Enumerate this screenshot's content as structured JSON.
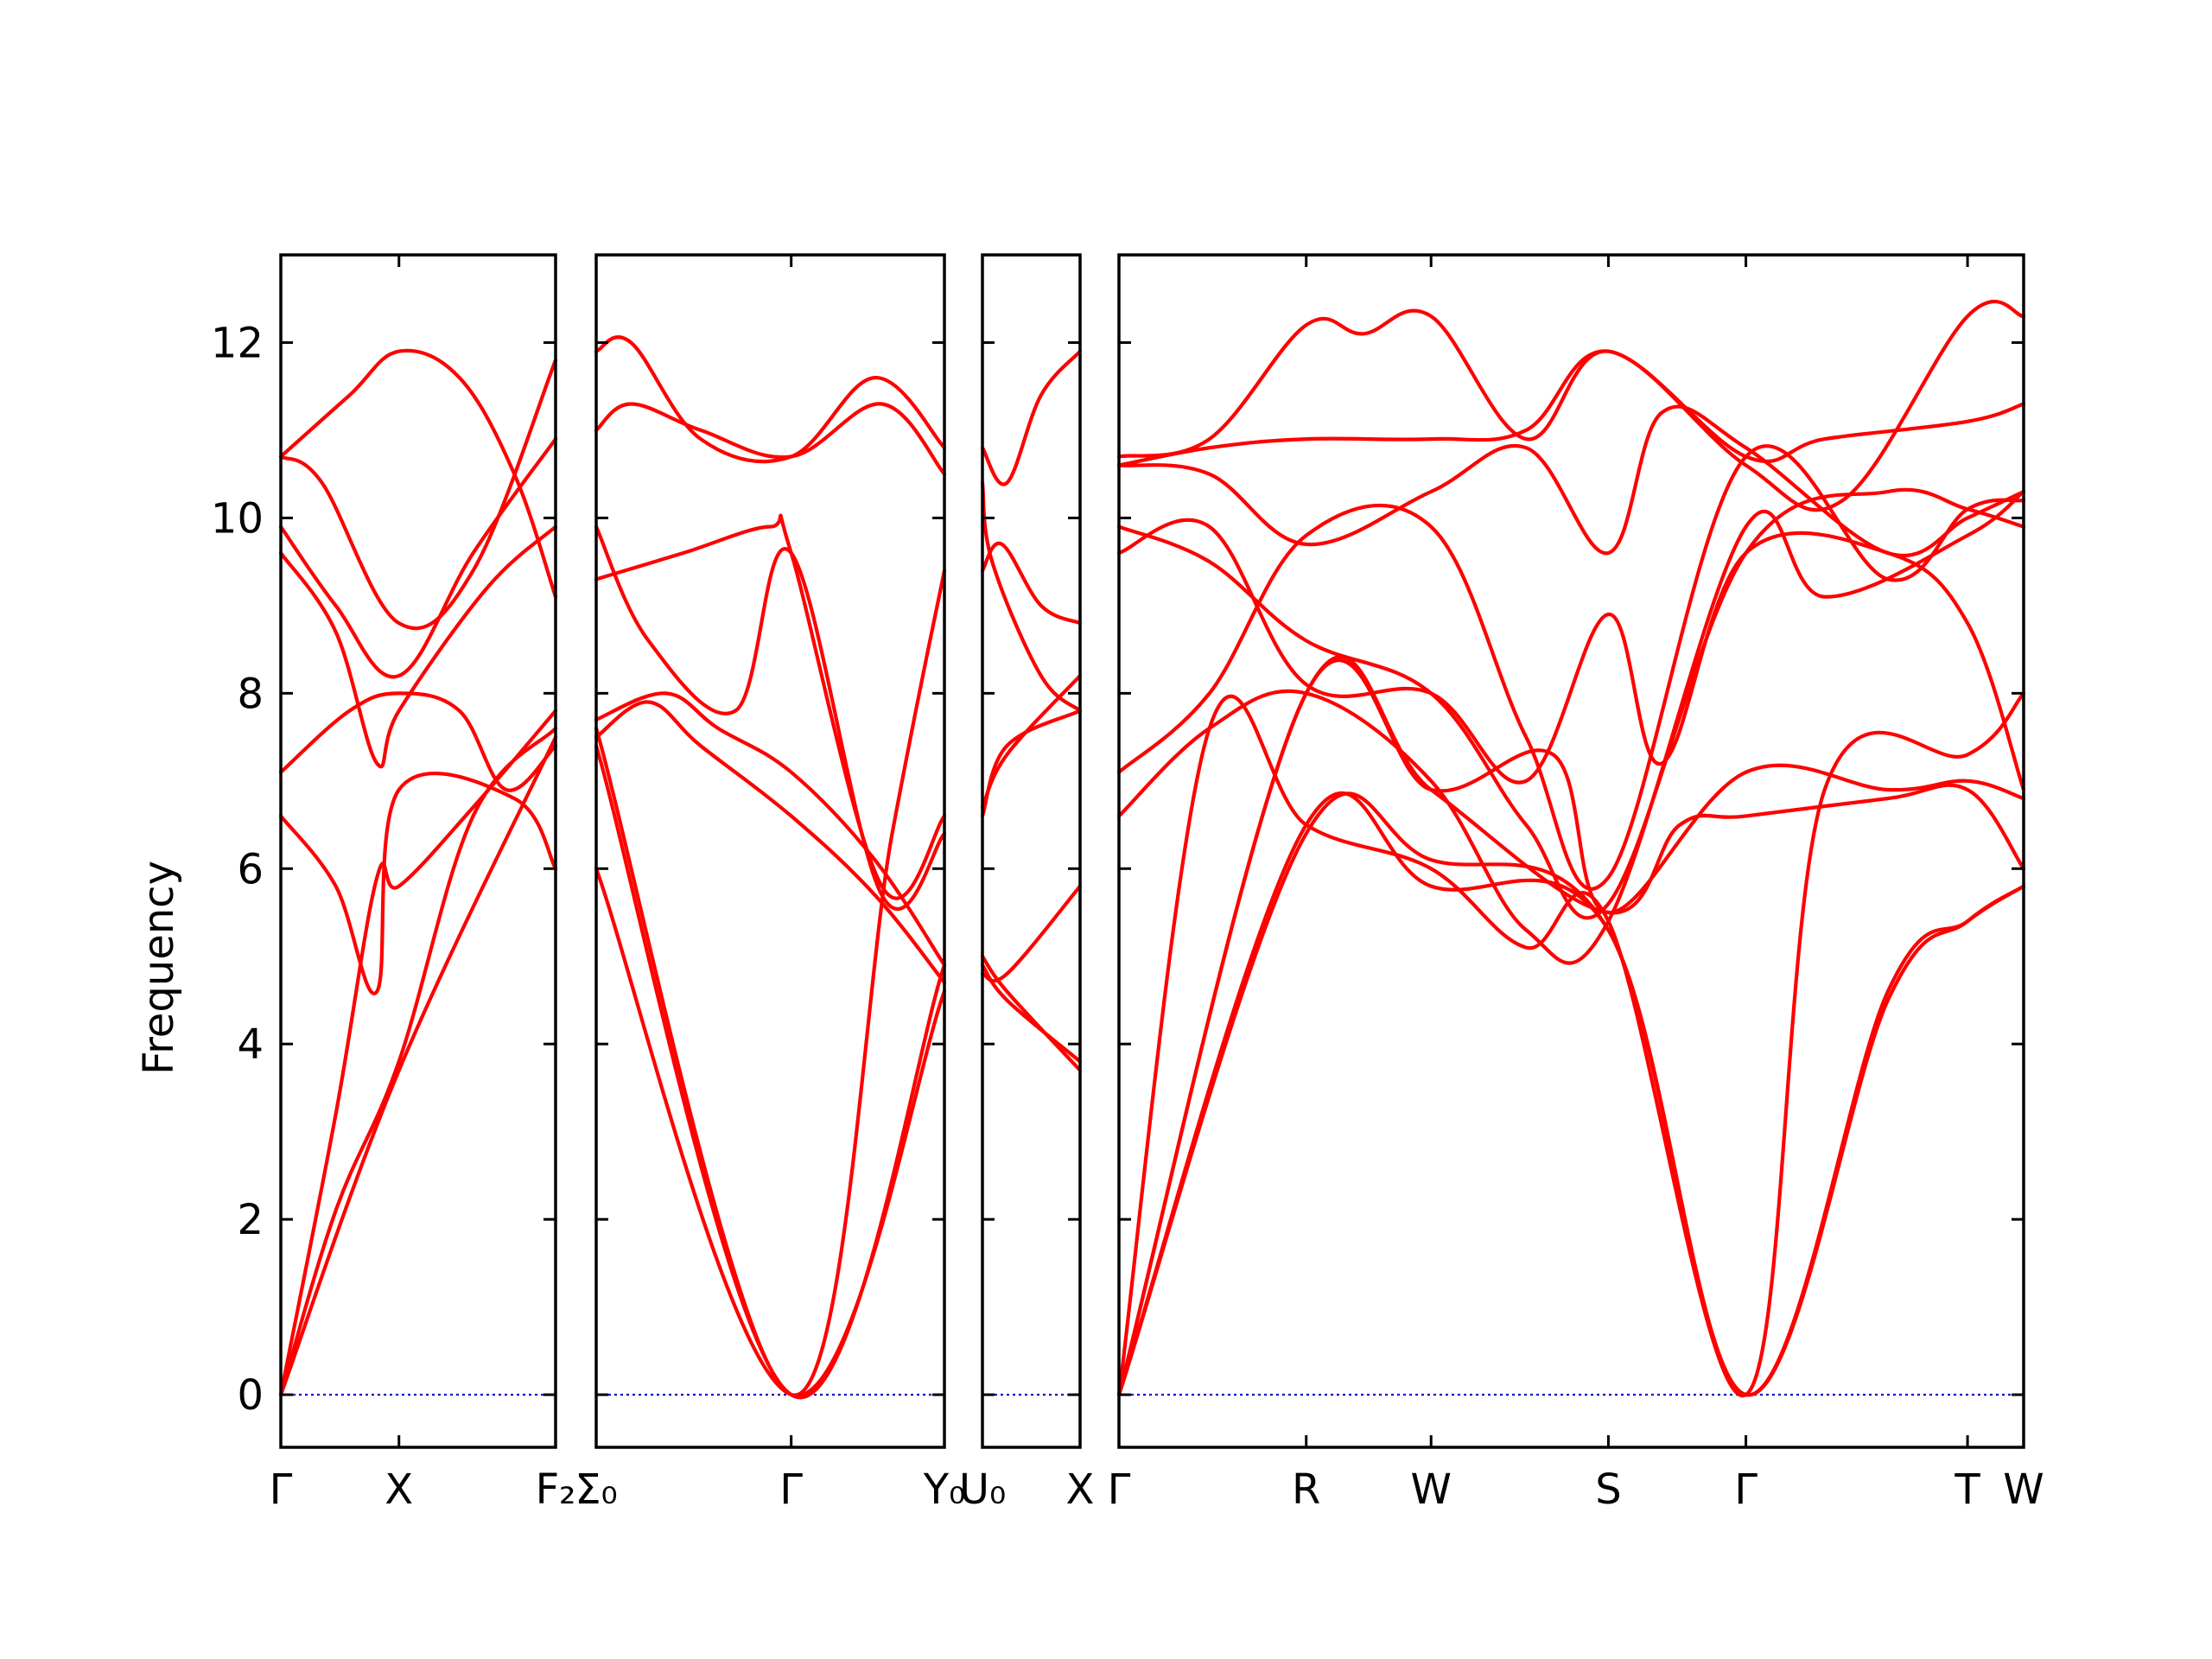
{
  "chart_data": {
    "type": "line",
    "ylabel": "Frequency",
    "ylim": [
      -0.6,
      13.0
    ],
    "yticks": [
      0,
      2,
      4,
      6,
      8,
      10,
      12
    ],
    "grid": false,
    "legend": "none",
    "colors": {
      "bands": "#ff0000",
      "zero_line": "#0000cc"
    },
    "panels": [
      {
        "labels": [
          "Γ",
          "X",
          "F₂"
        ],
        "label_pos": [
          0,
          0.43,
          1.0
        ],
        "bands": [
          {
            "x": [
              0,
              0.43,
              1.0
            ],
            "y": [
              0,
              3.7,
              7.5
            ]
          },
          {
            "x": [
              0,
              0.2,
              0.43,
              0.7,
              1.0
            ],
            "y": [
              0,
              2.1,
              3.8,
              6.6,
              7.6
            ]
          },
          {
            "x": [
              0,
              0.2,
              0.35,
              0.43,
              0.7,
              1.0
            ],
            "y": [
              0,
              3.2,
              5.9,
              5.8,
              6.7,
              7.8
            ]
          },
          {
            "x": [
              0,
              0.2,
              0.35,
              0.43,
              0.85,
              1.0
            ],
            "y": [
              6.6,
              5.8,
              4.6,
              6.9,
              6.8,
              6.0
            ]
          },
          {
            "x": [
              0,
              0.25,
              0.43,
              0.65,
              0.82,
              1.0
            ],
            "y": [
              7.1,
              7.8,
              8.0,
              7.8,
              6.9,
              7.4
            ]
          },
          {
            "x": [
              0,
              0.2,
              0.35,
              0.43,
              0.75,
              1.0
            ],
            "y": [
              9.6,
              8.7,
              7.2,
              7.8,
              9.2,
              9.9
            ]
          },
          {
            "x": [
              0,
              0.2,
              0.43,
              0.7,
              1.0
            ],
            "y": [
              9.9,
              9.0,
              8.2,
              9.6,
              10.9
            ]
          },
          {
            "x": [
              0,
              0.15,
              0.43,
              0.7,
              1.0
            ],
            "y": [
              10.7,
              10.4,
              8.8,
              9.4,
              11.8
            ]
          },
          {
            "x": [
              0,
              0.25,
              0.43,
              0.65,
              0.85,
              1.0
            ],
            "y": [
              10.7,
              11.4,
              11.9,
              11.6,
              10.5,
              9.1
            ]
          }
        ]
      },
      {
        "labels": [
          "Σ₀",
          "Γ",
          "Y₀"
        ],
        "label_pos": [
          0,
          0.56,
          1.0
        ],
        "bands": [
          {
            "x": [
              0,
              0.56,
              1.0
            ],
            "y": [
              6.0,
              0,
              4.6
            ]
          },
          {
            "x": [
              0,
              0.56,
              1.0
            ],
            "y": [
              7.4,
              0,
              4.9
            ]
          },
          {
            "x": [
              0,
              0.56,
              0.85,
              1.0
            ],
            "y": [
              7.6,
              0,
              6.4,
              9.4
            ]
          },
          {
            "x": [
              0,
              0.15,
              0.3,
              0.56,
              0.8,
              1.0
            ],
            "y": [
              7.5,
              7.9,
              7.4,
              6.6,
              5.7,
              4.7
            ]
          },
          {
            "x": [
              0,
              0.2,
              0.35,
              0.56,
              0.8,
              1.0
            ],
            "y": [
              7.7,
              8.0,
              7.6,
              7.1,
              6.1,
              4.9
            ]
          },
          {
            "x": [
              0,
              0.25,
              0.5,
              0.56,
              0.82,
              1.0
            ],
            "y": [
              9.3,
              9.6,
              9.9,
              9.6,
              5.8,
              6.6
            ]
          },
          {
            "x": [
              0,
              0.15,
              0.4,
              0.56,
              0.82,
              1.0
            ],
            "y": [
              9.9,
              8.6,
              7.8,
              9.6,
              5.7,
              6.4
            ]
          },
          {
            "x": [
              0,
              0.1,
              0.3,
              0.56,
              0.82,
              1.0
            ],
            "y": [
              11.0,
              11.3,
              11.0,
              10.7,
              11.3,
              10.5
            ]
          },
          {
            "x": [
              0,
              0.1,
              0.3,
              0.56,
              0.8,
              1.0
            ],
            "y": [
              11.9,
              12.0,
              10.9,
              10.7,
              11.6,
              10.8
            ]
          }
        ]
      },
      {
        "labels": [
          "U₀",
          "X"
        ],
        "label_pos": [
          0,
          1.0
        ],
        "bands": [
          {
            "x": [
              0,
              0.25,
              1.0
            ],
            "y": [
              4.9,
              4.5,
              3.8
            ]
          },
          {
            "x": [
              0,
              0.25,
              1.0
            ],
            "y": [
              5.0,
              4.6,
              3.7
            ]
          },
          {
            "x": [
              0,
              0.25,
              1.0
            ],
            "y": [
              4.8,
              4.8,
              5.8
            ]
          },
          {
            "x": [
              0,
              0.25,
              1.0
            ],
            "y": [
              6.6,
              7.4,
              7.8
            ]
          },
          {
            "x": [
              0,
              0.25,
              1.0
            ],
            "y": [
              6.7,
              7.3,
              8.2
            ]
          },
          {
            "x": [
              0,
              0.2,
              0.6,
              1.0
            ],
            "y": [
              9.4,
              9.7,
              9.0,
              8.8
            ]
          },
          {
            "x": [
              0,
              0.25,
              0.6,
              1.0
            ],
            "y": [
              10.8,
              10.4,
              11.4,
              11.9
            ]
          },
          {
            "x": [
              0,
              0.1,
              0.6,
              1.0
            ],
            "y": [
              10.4,
              9.5,
              8.2,
              7.8
            ]
          }
        ]
      },
      {
        "labels": [
          "Γ",
          "R",
          "W",
          "S",
          "Γ",
          "T",
          "W"
        ],
        "label_pos": [
          0,
          0.207,
          0.345,
          0.541,
          0.693,
          0.938,
          1.0
        ],
        "bands": [
          {
            "x": [
              0,
              0.207,
              0.345,
              0.541,
              0.693,
              0.85,
              0.938,
              1.0
            ],
            "y": [
              0,
              6.5,
              5.8,
              5.3,
              0,
              4.5,
              5.4,
              5.8
            ]
          },
          {
            "x": [
              0,
              0.207,
              0.345,
              0.541,
              0.693,
              0.85,
              0.938,
              1.0
            ],
            "y": [
              0,
              6.4,
              6.1,
              5.3,
              0,
              4.6,
              5.4,
              5.8
            ]
          },
          {
            "x": [
              0,
              0.1,
              0.207,
              0.345,
              0.45,
              0.541,
              0.693,
              0.78,
              0.938,
              1.0
            ],
            "y": [
              0,
              7.6,
              6.5,
              6.0,
              5.1,
              5.4,
              0,
              6.9,
              7.3,
              8.0
            ]
          },
          {
            "x": [
              0,
              0.207,
              0.345,
              0.541,
              0.62,
              0.693,
              0.85,
              0.938,
              1.0
            ],
            "y": [
              0,
              8.0,
              6.9,
              5.5,
              6.5,
              6.6,
              6.8,
              6.9,
              6.0
            ]
          },
          {
            "x": [
              0,
              0.207,
              0.345,
              0.48,
              0.541,
              0.693,
              0.85,
              0.938,
              1.0
            ],
            "y": [
              0,
              8.0,
              6.9,
              7.3,
              5.5,
              7.1,
              6.9,
              7.0,
              6.8
            ]
          },
          {
            "x": [
              0,
              0.1,
              0.207,
              0.345,
              0.45,
              0.541,
              0.693,
              0.78,
              0.938,
              1.0
            ],
            "y": [
              6.6,
              7.6,
              8.0,
              7.0,
              5.3,
              5.4,
              9.9,
              9.1,
              9.8,
              10.3
            ]
          },
          {
            "x": [
              0,
              0.1,
              0.207,
              0.345,
              0.45,
              0.541,
              0.693,
              0.85,
              0.938,
              1.0
            ],
            "y": [
              7.1,
              8.0,
              9.8,
              9.9,
              7.5,
              5.9,
              10.7,
              9.3,
              10.1,
              10.2
            ]
          },
          {
            "x": [
              0,
              0.1,
              0.207,
              0.345,
              0.45,
              0.541,
              0.693,
              0.85,
              0.938,
              1.0
            ],
            "y": [
              9.9,
              9.5,
              8.6,
              8.0,
              6.5,
              5.6,
              9.6,
              10.3,
              10.1,
              9.9
            ]
          },
          {
            "x": [
              0,
              0.1,
              0.207,
              0.345,
              0.45,
              0.541,
              0.6,
              0.693,
              0.85,
              0.938,
              1.0
            ],
            "y": [
              9.6,
              9.9,
              8.1,
              8.0,
              7.0,
              8.9,
              7.2,
              9.6,
              9.6,
              8.8,
              6.9
            ]
          },
          {
            "x": [
              0,
              0.1,
              0.207,
              0.345,
              0.45,
              0.541,
              0.6,
              0.693,
              0.85,
              0.938,
              1.0
            ],
            "y": [
              10.6,
              10.5,
              9.7,
              10.3,
              10.8,
              9.6,
              11.2,
              10.8,
              9.6,
              10.0,
              10.3
            ]
          },
          {
            "x": [
              0,
              0.1,
              0.207,
              0.345,
              0.45,
              0.541,
              0.693,
              0.78,
              0.938,
              1.0
            ],
            "y": [
              10.6,
              10.8,
              10.9,
              10.9,
              11.0,
              11.9,
              10.7,
              10.9,
              11.1,
              11.3
            ]
          },
          {
            "x": [
              0,
              0.1,
              0.207,
              0.27,
              0.345,
              0.45,
              0.541,
              0.693,
              0.8,
              0.938,
              1.0
            ],
            "y": [
              10.7,
              10.9,
              12.2,
              12.1,
              12.3,
              10.9,
              11.9,
              10.6,
              10.2,
              12.3,
              12.3
            ]
          }
        ]
      }
    ]
  }
}
